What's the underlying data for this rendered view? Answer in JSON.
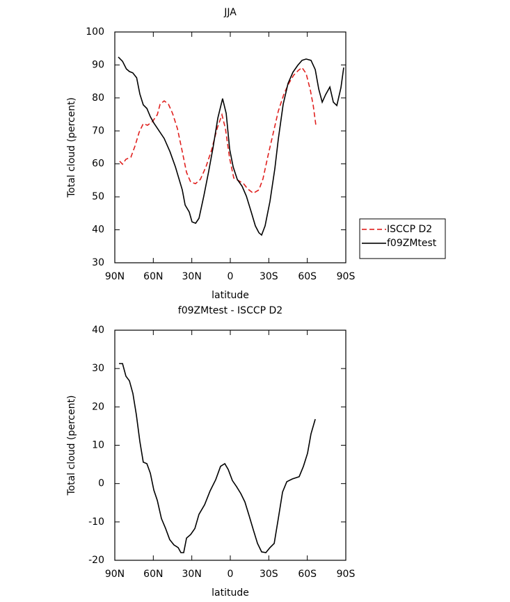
{
  "chart_data": [
    {
      "type": "line",
      "title": "JJA",
      "x_label": "latitude",
      "y_label": "Total cloud (percent)",
      "xlim": [
        90,
        -90
      ],
      "xticks": [
        {
          "value": 90,
          "label": "90N"
        },
        {
          "value": 60,
          "label": "60N"
        },
        {
          "value": 30,
          "label": "30N"
        },
        0,
        {
          "value": -30,
          "label": "30S"
        },
        {
          "value": -60,
          "label": "60S"
        },
        {
          "value": -90,
          "label": "90S"
        }
      ],
      "ylim": [
        30,
        100
      ],
      "yticks": [
        30,
        40,
        50,
        60,
        70,
        80,
        90,
        100
      ],
      "legend": "right",
      "series": [
        {
          "name": "ISCCP D2",
          "color": "#e0201e",
          "line_style": "dashed",
          "x": [
            86.2,
            84,
            81.3,
            77.5,
            74.3,
            71,
            67.8,
            64.5,
            60.7,
            56.9,
            54.7,
            51.5,
            48.2,
            45,
            41.2,
            37.4,
            34.1,
            30.9,
            27.1,
            23.3,
            19,
            14.6,
            10.3,
            6.5,
            3.8,
            0.5,
            -2.7,
            -6.5,
            -10.3,
            -13.6,
            -17.9,
            -22.3,
            -25.5,
            -29.3,
            -33.6,
            -37.4,
            -41.8,
            -45.6,
            -49.4,
            -53.2,
            -55.9,
            -59.1,
            -62.4,
            -64.6,
            -66.7
          ],
          "values": [
            60.8,
            59.9,
            61.4,
            62.0,
            65.4,
            69.6,
            72.2,
            71.7,
            72.8,
            74.9,
            78.1,
            79.1,
            78.1,
            75.3,
            70.7,
            63.7,
            57.4,
            54.5,
            54.0,
            55.3,
            59.1,
            64.2,
            70.7,
            74.9,
            70.7,
            61.6,
            55.7,
            54.9,
            54.0,
            52.4,
            51.1,
            52.1,
            55.5,
            62.3,
            69.6,
            76.0,
            81.2,
            84.4,
            86.9,
            88.4,
            89.2,
            87.4,
            82.3,
            77.7,
            71.7
          ]
        },
        {
          "name": "f09ZMtest",
          "color": "#000000",
          "line_style": "solid",
          "x": [
            87.3,
            84,
            81,
            78.6,
            76,
            73,
            70.5,
            67.8,
            65,
            62.3,
            59.6,
            51.5,
            47,
            42.8,
            37.4,
            35.2,
            32,
            29.8,
            27,
            24.4,
            20.6,
            16.8,
            13.5,
            9.7,
            6,
            3.2,
            0.5,
            -2.2,
            -5.4,
            -9.2,
            -12.5,
            -16.3,
            -19.5,
            -22.3,
            -24.4,
            -27.1,
            -30.9,
            -34.7,
            -37.4,
            -41.2,
            -45,
            -48.8,
            -52.6,
            -55.9,
            -59.1,
            -62.9,
            -66.2,
            -68.9,
            -71.6,
            -74.3,
            -77.6,
            -80.3,
            -83,
            -86.2,
            -88.4
          ],
          "values": [
            92.4,
            91.1,
            88.8,
            88.0,
            87.6,
            86.1,
            81.2,
            77.9,
            76.8,
            74.3,
            72.4,
            67.7,
            63.7,
            59.1,
            52.1,
            47.5,
            45.4,
            42.4,
            42.0,
            43.5,
            50.3,
            57.8,
            64.8,
            73.9,
            79.8,
            75.3,
            64.4,
            59.1,
            55.3,
            53.2,
            50.2,
            45.4,
            41.2,
            39.1,
            38.4,
            41.2,
            48.6,
            58.5,
            67.5,
            78.1,
            84.4,
            87.8,
            89.9,
            91.4,
            91.8,
            91.4,
            88.6,
            82.7,
            78.7,
            81.0,
            83.3,
            78.7,
            77.7,
            83.1,
            89.2
          ]
        }
      ]
    },
    {
      "type": "line",
      "title": "f09ZMtest - ISCCP D2",
      "x_label": "latitude",
      "y_label": "Total cloud (percent)",
      "xlim": [
        90,
        -90
      ],
      "xticks": [
        {
          "value": 90,
          "label": "90N"
        },
        {
          "value": 60,
          "label": "60N"
        },
        {
          "value": 30,
          "label": "30N"
        },
        0,
        {
          "value": -30,
          "label": "30S"
        },
        {
          "value": -60,
          "label": "60S"
        },
        {
          "value": -90,
          "label": "90S"
        }
      ],
      "ylim": [
        -20,
        40
      ],
      "yticks": [
        -20,
        -10,
        0,
        10,
        20,
        30,
        40
      ],
      "series": [
        {
          "color": "#000000",
          "line_style": "solid",
          "x": [
            86.7,
            84,
            81.3,
            78.6,
            75.9,
            73.2,
            70.5,
            67.8,
            65,
            62.3,
            59.6,
            56.9,
            53.7,
            50.4,
            47.2,
            43.9,
            40.6,
            38.5,
            36.3,
            34.1,
            30.9,
            27.6,
            24.4,
            20,
            15.7,
            11.4,
            7.6,
            4.3,
            1.6,
            -1.6,
            -4.9,
            -8.2,
            -11.4,
            -14.7,
            -17.9,
            -21.2,
            -24.4,
            -27.7,
            -30.9,
            -34.2,
            -37.4,
            -40.7,
            -44,
            -48.3,
            -53.7,
            -57,
            -60.2,
            -62.9,
            -66.2
          ],
          "values": [
            31.3,
            31.3,
            28.0,
            26.8,
            23.5,
            17.9,
            11.0,
            5.6,
            5.2,
            2.7,
            -1.7,
            -4.4,
            -9.1,
            -11.7,
            -14.6,
            -16.0,
            -16.7,
            -18.0,
            -18.0,
            -14.2,
            -13.3,
            -11.7,
            -8.0,
            -5.5,
            -1.9,
            1.0,
            4.5,
            5.2,
            3.7,
            0.8,
            -0.8,
            -2.6,
            -4.8,
            -8.4,
            -12.0,
            -15.6,
            -17.8,
            -18.0,
            -16.7,
            -15.6,
            -9.1,
            -2.2,
            0.5,
            1.2,
            1.8,
            4.5,
            7.9,
            13.0,
            16.8
          ]
        }
      ]
    }
  ]
}
